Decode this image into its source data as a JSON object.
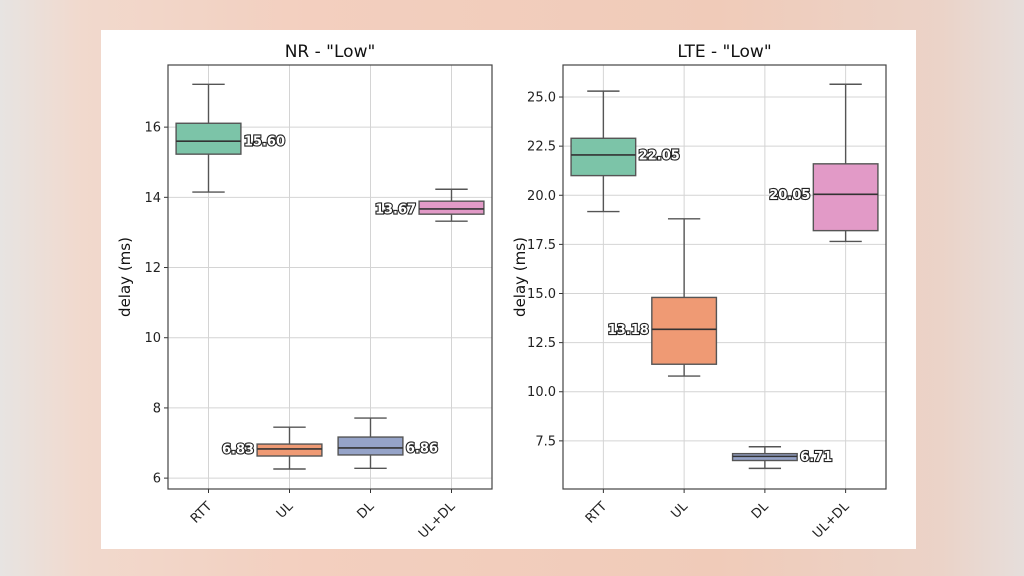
{
  "chart_data": [
    {
      "type": "box",
      "title": "NR - \"Low\"",
      "ylabel": "delay (ms)",
      "xlabel": "",
      "ylim": [
        5.69,
        17.77
      ],
      "yticks": [
        6,
        8,
        10,
        12,
        14,
        16
      ],
      "ytick_labels": [
        "6",
        "8",
        "10",
        "12",
        "14",
        "16"
      ],
      "grid": true,
      "categories": [
        "RTT",
        "UL",
        "DL",
        "UL+DL"
      ],
      "colors": [
        "#7cc4a8",
        "#ef9a74",
        "#95a3c8",
        "#e29ac7"
      ],
      "boxes": [
        {
          "whisker_low": 14.15,
          "q1": 15.23,
          "median": 15.6,
          "q3": 16.11,
          "whisker_high": 17.22,
          "label": "15.60"
        },
        {
          "whisker_low": 6.26,
          "q1": 6.63,
          "median": 6.83,
          "q3": 6.97,
          "whisker_high": 7.45,
          "label": "6.83"
        },
        {
          "whisker_low": 6.28,
          "q1": 6.66,
          "median": 6.86,
          "q3": 7.17,
          "whisker_high": 7.71,
          "label": "6.86"
        },
        {
          "whisker_low": 13.32,
          "q1": 13.52,
          "median": 13.67,
          "q3": 13.89,
          "whisker_high": 14.23,
          "label": "13.67"
        }
      ]
    },
    {
      "type": "box",
      "title": "LTE - \"Low\"",
      "ylabel": "delay (ms)",
      "xlabel": "",
      "ylim": [
        5.05,
        26.63
      ],
      "yticks": [
        7.5,
        10.0,
        12.5,
        15.0,
        17.5,
        20.0,
        22.5,
        25.0
      ],
      "ytick_labels": [
        "7.5",
        "10.0",
        "12.5",
        "15.0",
        "17.5",
        "20.0",
        "22.5",
        "25.0"
      ],
      "grid": true,
      "categories": [
        "RTT",
        "UL",
        "DL",
        "UL+DL"
      ],
      "colors": [
        "#7cc4a8",
        "#ef9a74",
        "#95a3c8",
        "#e29ac7"
      ],
      "boxes": [
        {
          "whisker_low": 19.17,
          "q1": 21.0,
          "median": 22.05,
          "q3": 22.9,
          "whisker_high": 25.3,
          "label": "22.05"
        },
        {
          "whisker_low": 10.8,
          "q1": 11.4,
          "median": 13.18,
          "q3": 14.8,
          "whisker_high": 18.8,
          "label": "13.18"
        },
        {
          "whisker_low": 6.1,
          "q1": 6.5,
          "median": 6.71,
          "q3": 6.85,
          "whisker_high": 7.2,
          "label": "6.71"
        },
        {
          "whisker_low": 17.65,
          "q1": 18.2,
          "median": 20.05,
          "q3": 21.6,
          "whisker_high": 25.65,
          "label": "20.05"
        }
      ]
    }
  ]
}
